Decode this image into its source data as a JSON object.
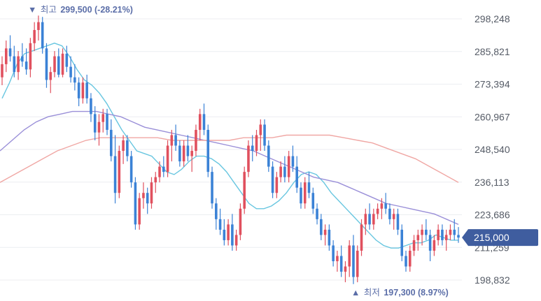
{
  "chart_data": {
    "type": "candlestick",
    "grid": true,
    "y_axis": {
      "position": "right",
      "ylim": [
        189000,
        306000
      ],
      "ticks": [
        198832,
        211259,
        223686,
        236113,
        248540,
        260967,
        273394,
        285821,
        298248
      ],
      "tick_labels": [
        "198,832",
        "211,259",
        "223,686",
        "236,113",
        "248,540",
        "260,967",
        "273,394",
        "285,821",
        "298,248"
      ]
    },
    "current_price": {
      "value": 215000,
      "label": "215,000"
    },
    "annotations": {
      "high": {
        "marker": "▼",
        "label": "최고",
        "value_text": "299,500 (-28.21%)",
        "value": 299500
      },
      "low": {
        "marker": "▲",
        "label": "최저",
        "value_text": "197,300 (8.97%)",
        "value": 197300
      }
    },
    "colors": {
      "up": "#e0505e",
      "down": "#3b82d6",
      "ma_short": "#68c6e0",
      "ma_mid": "#9a8fd8",
      "ma_long": "#f0a7a4",
      "price_tag": "#3f5d9f",
      "grid": "#eceef1",
      "annotation_text": "#5b6ea8"
    },
    "candles": [
      [
        276000,
        284000,
        273000,
        281000
      ],
      [
        281000,
        290000,
        278000,
        287000
      ],
      [
        287000,
        292000,
        282000,
        284000
      ],
      [
        284000,
        288000,
        276000,
        278000
      ],
      [
        278000,
        286000,
        275000,
        284000
      ],
      [
        284000,
        289000,
        280000,
        282000
      ],
      [
        282000,
        287000,
        277000,
        279000
      ],
      [
        279000,
        291000,
        276000,
        289000
      ],
      [
        289000,
        297000,
        286000,
        294000
      ],
      [
        294000,
        299500,
        290000,
        297000
      ],
      [
        297000,
        299000,
        285000,
        287000
      ],
      [
        287000,
        289000,
        272000,
        275000
      ],
      [
        275000,
        280000,
        270000,
        278000
      ],
      [
        278000,
        286000,
        276000,
        284000
      ],
      [
        284000,
        287000,
        276000,
        277000
      ],
      [
        277000,
        287000,
        276000,
        285000
      ],
      [
        285000,
        288000,
        278000,
        280000
      ],
      [
        280000,
        284000,
        274000,
        276000
      ],
      [
        276000,
        281000,
        271000,
        274000
      ],
      [
        274000,
        276000,
        265000,
        268000
      ],
      [
        268000,
        276000,
        266000,
        274000
      ],
      [
        274000,
        277000,
        266000,
        268000
      ],
      [
        268000,
        270000,
        259000,
        262000
      ],
      [
        262000,
        265000,
        252000,
        255000
      ],
      [
        255000,
        262000,
        250000,
        259000
      ],
      [
        259000,
        264000,
        255000,
        262000
      ],
      [
        262000,
        264000,
        254000,
        256000
      ],
      [
        256000,
        260000,
        244000,
        246000
      ],
      [
        246000,
        254000,
        228000,
        232000
      ],
      [
        232000,
        250000,
        230000,
        248000
      ],
      [
        248000,
        254000,
        243000,
        252000
      ],
      [
        252000,
        254000,
        244000,
        246000
      ],
      [
        246000,
        248000,
        234000,
        236000
      ],
      [
        236000,
        238000,
        218000,
        220000
      ],
      [
        220000,
        232000,
        218000,
        230000
      ],
      [
        230000,
        236000,
        226000,
        232000
      ],
      [
        232000,
        234000,
        224000,
        228000
      ],
      [
        228000,
        238000,
        226000,
        236000
      ],
      [
        236000,
        240000,
        232000,
        238000
      ],
      [
        238000,
        244000,
        236000,
        242000
      ],
      [
        242000,
        246000,
        238000,
        240000
      ],
      [
        240000,
        252000,
        238000,
        250000
      ],
      [
        250000,
        256000,
        244000,
        254000
      ],
      [
        254000,
        258000,
        248000,
        250000
      ],
      [
        250000,
        252000,
        242000,
        244000
      ],
      [
        244000,
        252000,
        242000,
        250000
      ],
      [
        250000,
        254000,
        244000,
        246000
      ],
      [
        246000,
        250000,
        240000,
        248000
      ],
      [
        248000,
        258000,
        246000,
        256000
      ],
      [
        256000,
        264000,
        252000,
        262000
      ],
      [
        262000,
        266000,
        254000,
        256000
      ],
      [
        256000,
        258000,
        238000,
        240000
      ],
      [
        240000,
        242000,
        226000,
        228000
      ],
      [
        228000,
        230000,
        218000,
        222000
      ],
      [
        222000,
        226000,
        216000,
        218000
      ],
      [
        218000,
        222000,
        212000,
        214000
      ],
      [
        214000,
        222000,
        212000,
        220000
      ],
      [
        220000,
        224000,
        210000,
        212000
      ],
      [
        212000,
        218000,
        210000,
        216000
      ],
      [
        216000,
        228000,
        214000,
        226000
      ],
      [
        226000,
        242000,
        224000,
        240000
      ],
      [
        240000,
        252000,
        238000,
        250000
      ],
      [
        250000,
        254000,
        244000,
        248000
      ],
      [
        248000,
        256000,
        246000,
        254000
      ],
      [
        254000,
        260000,
        248000,
        258000
      ],
      [
        258000,
        260000,
        248000,
        250000
      ],
      [
        250000,
        252000,
        240000,
        242000
      ],
      [
        242000,
        244000,
        230000,
        232000
      ],
      [
        232000,
        240000,
        230000,
        238000
      ],
      [
        238000,
        244000,
        236000,
        242000
      ],
      [
        242000,
        246000,
        236000,
        238000
      ],
      [
        238000,
        248000,
        236000,
        246000
      ],
      [
        246000,
        250000,
        240000,
        242000
      ],
      [
        242000,
        246000,
        232000,
        234000
      ],
      [
        234000,
        236000,
        226000,
        228000
      ],
      [
        228000,
        238000,
        226000,
        236000
      ],
      [
        236000,
        240000,
        230000,
        232000
      ],
      [
        232000,
        234000,
        224000,
        226000
      ],
      [
        226000,
        228000,
        220000,
        222000
      ],
      [
        222000,
        224000,
        214000,
        216000
      ],
      [
        216000,
        220000,
        212000,
        218000
      ],
      [
        218000,
        220000,
        210000,
        212000
      ],
      [
        212000,
        214000,
        204000,
        206000
      ],
      [
        206000,
        210000,
        202000,
        208000
      ],
      [
        208000,
        212000,
        200000,
        202000
      ],
      [
        202000,
        206000,
        198000,
        204000
      ],
      [
        204000,
        214000,
        200000,
        212000
      ],
      [
        212000,
        216000,
        197300,
        200000
      ],
      [
        200000,
        212000,
        198000,
        210000
      ],
      [
        210000,
        222000,
        208000,
        220000
      ],
      [
        220000,
        226000,
        216000,
        224000
      ],
      [
        224000,
        228000,
        218000,
        220000
      ],
      [
        220000,
        226000,
        218000,
        224000
      ],
      [
        224000,
        228000,
        222000,
        226000
      ],
      [
        226000,
        230000,
        222000,
        228000
      ],
      [
        228000,
        232000,
        224000,
        226000
      ],
      [
        226000,
        228000,
        220000,
        222000
      ],
      [
        222000,
        226000,
        218000,
        224000
      ],
      [
        224000,
        226000,
        216000,
        218000
      ],
      [
        218000,
        220000,
        206000,
        208000
      ],
      [
        208000,
        210000,
        202000,
        204000
      ],
      [
        204000,
        212000,
        202000,
        210000
      ],
      [
        210000,
        216000,
        208000,
        214000
      ],
      [
        214000,
        218000,
        210000,
        216000
      ],
      [
        216000,
        220000,
        212000,
        218000
      ],
      [
        218000,
        222000,
        214000,
        216000
      ],
      [
        216000,
        218000,
        206000,
        210000
      ],
      [
        210000,
        216000,
        208000,
        214000
      ],
      [
        214000,
        220000,
        212000,
        218000
      ],
      [
        218000,
        220000,
        212000,
        214000
      ],
      [
        214000,
        218000,
        210000,
        216000
      ],
      [
        216000,
        220000,
        214000,
        218000
      ],
      [
        218000,
        222000,
        214000,
        216000
      ],
      [
        216000,
        219000,
        213000,
        215000
      ]
    ],
    "moving_averages": [
      {
        "key": "ma_short",
        "values": [
          268000,
          274000,
          281000,
          285000,
          286000,
          287000,
          288000,
          289000,
          288000,
          284000,
          279000,
          275000,
          273000,
          270000,
          266000,
          261000,
          256000,
          252000,
          248000,
          247000,
          246000,
          243000,
          240000,
          239000,
          241000,
          244000,
          246000,
          246000,
          245000,
          243000,
          240000,
          236000,
          232000,
          228000,
          226000,
          226000,
          227000,
          229000,
          232000,
          236000,
          239000,
          240000,
          239000,
          236000,
          232000,
          229000,
          226000,
          223000,
          220000,
          217000,
          214000,
          212000,
          211000,
          211000,
          212000,
          213000,
          213000,
          214000,
          216000,
          215000,
          214000,
          214000
        ]
      },
      {
        "key": "ma_mid",
        "values": [
          248000,
          252000,
          256000,
          259000,
          261000,
          262000,
          263000,
          263000,
          263000,
          262000,
          261000,
          259000,
          257000,
          256000,
          255000,
          254000,
          253000,
          252000,
          251000,
          250000,
          249000,
          248000,
          246000,
          244000,
          242000,
          240000,
          238000,
          237000,
          236000,
          234000,
          232000,
          230000,
          228000,
          227000,
          226000,
          225000,
          224000,
          222000,
          220000
        ]
      },
      {
        "key": "ma_long",
        "values": [
          236000,
          239000,
          242000,
          245000,
          248000,
          250000,
          252000,
          253000,
          253000,
          253000,
          253000,
          253000,
          252000,
          252000,
          252000,
          252000,
          252000,
          253000,
          253000,
          253000,
          254000,
          254000,
          254000,
          254000,
          253000,
          252000,
          251000,
          249000,
          247000,
          245000,
          242000,
          239000,
          236000
        ]
      }
    ]
  }
}
